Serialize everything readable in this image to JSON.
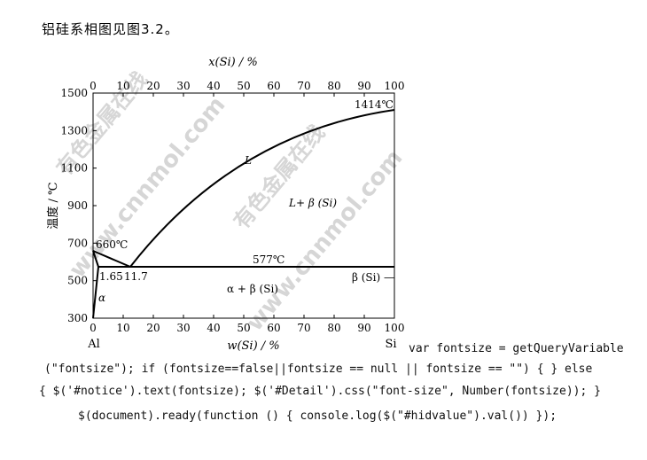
{
  "heading": "铝硅系相图见图3.2。",
  "figure": {
    "top_axis_label": "x(Si) / %",
    "bottom_axis_label": "w(Si) / %",
    "y_axis_label": "温度 / ℃",
    "x_ticks": [
      "0",
      "10",
      "20",
      "30",
      "40",
      "50",
      "60",
      "70",
      "80",
      "90",
      "100"
    ],
    "y_ticks": [
      "300",
      "500",
      "700",
      "900",
      "1100",
      "1300",
      "1500"
    ],
    "left_element": "Al",
    "right_element": "Si",
    "labels": {
      "si_melting": "1414℃",
      "al_melting": "660℃",
      "eutectic_temp": "577℃",
      "liquid": "L",
      "liquid_beta": "L+ β (Si)",
      "alpha_beta": "α + β (Si)",
      "beta_si": "β (Si) —",
      "alpha": "α",
      "solubility": "1.65",
      "eutectic_comp": "11.7"
    },
    "watermark": "有色金属在线 www.cnnmol.com"
  },
  "code_lines": [
    "var fontsize = getQueryVariable",
    "(\"fontsize\"); if (fontsize==false||fontsize == null || fontsize == \"\") { } else",
    "{ $('#notice').text(fontsize); $('#Detail').css(\"font-size\", Number(fontsize)); }",
    "$(document).ready(function () { console.log($(\"#hidvalue\").val()) });"
  ]
}
